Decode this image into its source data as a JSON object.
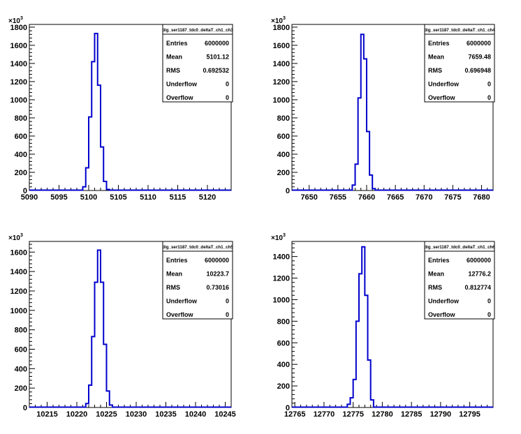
{
  "chart_data": [
    {
      "type": "histogram",
      "title": "",
      "xlabel": "",
      "ylabel": "",
      "y_multiplier": "10^3",
      "xlim": [
        5090,
        5124
      ],
      "ylim": [
        0,
        1830
      ],
      "x_ticks": [
        5090,
        5095,
        5100,
        5105,
        5110,
        5115,
        5120
      ],
      "y_ticks": [
        0,
        200,
        400,
        600,
        800,
        1000,
        1200,
        1400,
        1600,
        1800
      ],
      "bins": {
        "x": [
          5098.5,
          5099,
          5099.5,
          5100,
          5100.5,
          5101,
          5101.5,
          5102,
          5102.5,
          5103,
          5103.5
        ],
        "y": [
          0,
          40,
          250,
          810,
          1420,
          1730,
          1160,
          480,
          100,
          12,
          0
        ]
      },
      "stats": {
        "name": "dig_ser1187_tdc0_deltaT_ch1_ch3",
        "rows": [
          {
            "label": "Entries",
            "value": "6000000"
          },
          {
            "label": "Mean",
            "value": "5101.12"
          },
          {
            "label": "RMS",
            "value": "0.692532"
          },
          {
            "label": "Underflow",
            "value": "0"
          },
          {
            "label": "Overflow",
            "value": "0"
          }
        ]
      }
    },
    {
      "type": "histogram",
      "title": "",
      "xlabel": "",
      "ylabel": "",
      "y_multiplier": "10^3",
      "xlim": [
        7647,
        7682
      ],
      "ylim": [
        0,
        1830
      ],
      "x_ticks": [
        7650,
        7655,
        7660,
        7665,
        7670,
        7675,
        7680
      ],
      "y_ticks": [
        0,
        200,
        400,
        600,
        800,
        1000,
        1200,
        1400,
        1600,
        1800
      ],
      "bins": {
        "x": [
          7657,
          7657.5,
          7658,
          7658.5,
          7659,
          7659.5,
          7660,
          7660.5,
          7661,
          7661.5
        ],
        "y": [
          0,
          60,
          290,
          1020,
          1720,
          1450,
          650,
          170,
          20,
          0
        ]
      },
      "stats": {
        "name": "dig_ser1187_tdc0_deltaT_ch1_ch4",
        "rows": [
          {
            "label": "Entries",
            "value": "6000000"
          },
          {
            "label": "Mean",
            "value": "7659.48"
          },
          {
            "label": "RMS",
            "value": "0.696948"
          },
          {
            "label": "Underflow",
            "value": "0"
          },
          {
            "label": "Overflow",
            "value": "0"
          }
        ]
      }
    },
    {
      "type": "histogram",
      "title": "",
      "xlabel": "",
      "ylabel": "",
      "y_multiplier": "10^3",
      "xlim": [
        10212,
        10246
      ],
      "ylim": [
        0,
        1710
      ],
      "x_ticks": [
        10215,
        10220,
        10225,
        10230,
        10235,
        10240,
        10245
      ],
      "y_ticks": [
        0,
        200,
        400,
        600,
        800,
        1000,
        1200,
        1400,
        1600
      ],
      "bins": {
        "x": [
          10221,
          10221.5,
          10222,
          10222.5,
          10223,
          10223.5,
          10224,
          10224.5,
          10225,
          10225.5,
          10226
        ],
        "y": [
          0,
          40,
          230,
          730,
          1290,
          1620,
          1290,
          650,
          170,
          25,
          0
        ]
      },
      "stats": {
        "name": "dig_ser1187_tdc0_deltaT_ch1_ch5",
        "rows": [
          {
            "label": "Entries",
            "value": "6000000"
          },
          {
            "label": "Mean",
            "value": "10223.7"
          },
          {
            "label": "RMS",
            "value": "0.73016"
          },
          {
            "label": "Underflow",
            "value": "0"
          },
          {
            "label": "Overflow",
            "value": "0"
          }
        ]
      }
    },
    {
      "type": "histogram",
      "title": "",
      "xlabel": "",
      "ylabel": "",
      "y_multiplier": "10^3",
      "xlim": [
        12764.5,
        12799
      ],
      "ylim": [
        0,
        1540
      ],
      "x_ticks": [
        12765,
        12770,
        12775,
        12780,
        12785,
        12790,
        12795
      ],
      "y_ticks": [
        0,
        200,
        400,
        600,
        800,
        1000,
        1200,
        1400
      ],
      "bins": {
        "x": [
          12773.5,
          12774,
          12774.5,
          12775,
          12775.5,
          12776,
          12776.5,
          12777,
          12777.5,
          12778,
          12778.5
        ],
        "y": [
          0,
          30,
          90,
          260,
          800,
          1240,
          1490,
          1040,
          440,
          70,
          0
        ]
      },
      "stats": {
        "name": "dig_ser1187_tdc0_deltaT_ch1_ch6",
        "rows": [
          {
            "label": "Entries",
            "value": "6000000"
          },
          {
            "label": "Mean",
            "value": "12776.2"
          },
          {
            "label": "RMS",
            "value": "0.812774"
          },
          {
            "label": "Underflow",
            "value": "0"
          },
          {
            "label": "Overflow",
            "value": "0"
          }
        ]
      }
    }
  ],
  "colors": {
    "histogram_line": "#0000cc",
    "axis": "#000000",
    "background": "#ffffff"
  }
}
